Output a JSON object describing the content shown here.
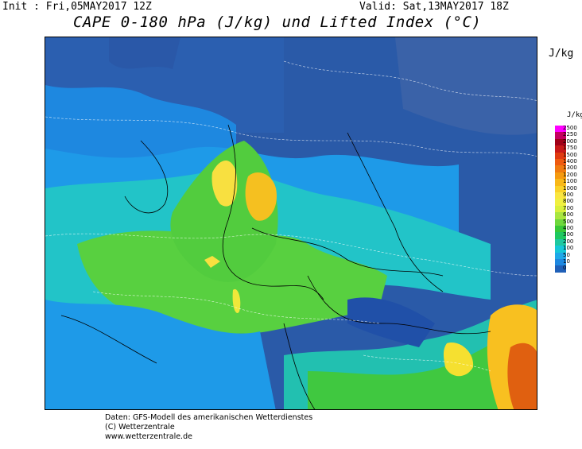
{
  "header": {
    "init": "Init : Fri,05MAY2017 12Z",
    "valid": "Valid: Sat,13MAY2017 18Z",
    "title": "CAPE 0-180 hPa (J/kg) und Lifted Index (°C)"
  },
  "unit_label": "J/kg",
  "legend": {
    "unit": "J/kg",
    "levels": [
      "2500",
      "2250",
      "2000",
      "1750",
      "1500",
      "1400",
      "1300",
      "1200",
      "1100",
      "1000",
      "900",
      "800",
      "700",
      "600",
      "500",
      "400",
      "300",
      "200",
      "100",
      "50",
      "10",
      "0"
    ],
    "colors": [
      "#ff00ff",
      "#c40060",
      "#a00018",
      "#c81818",
      "#e03a10",
      "#ee5a10",
      "#f07a10",
      "#f59a10",
      "#f8b818",
      "#fad228",
      "#fae640",
      "#f0f040",
      "#d8f03c",
      "#a8e640",
      "#6ed83c",
      "#38c838",
      "#1ec860",
      "#1ec8a0",
      "#16c8d8",
      "#1ea8e8",
      "#1e88e0",
      "#2060b8"
    ]
  },
  "footer": {
    "line1": "Daten: GFS-Modell des amerikanischen Wetterdienstes",
    "line2": "(C) Wetterzentrale",
    "line3": "www.wetterzentrale.de"
  }
}
